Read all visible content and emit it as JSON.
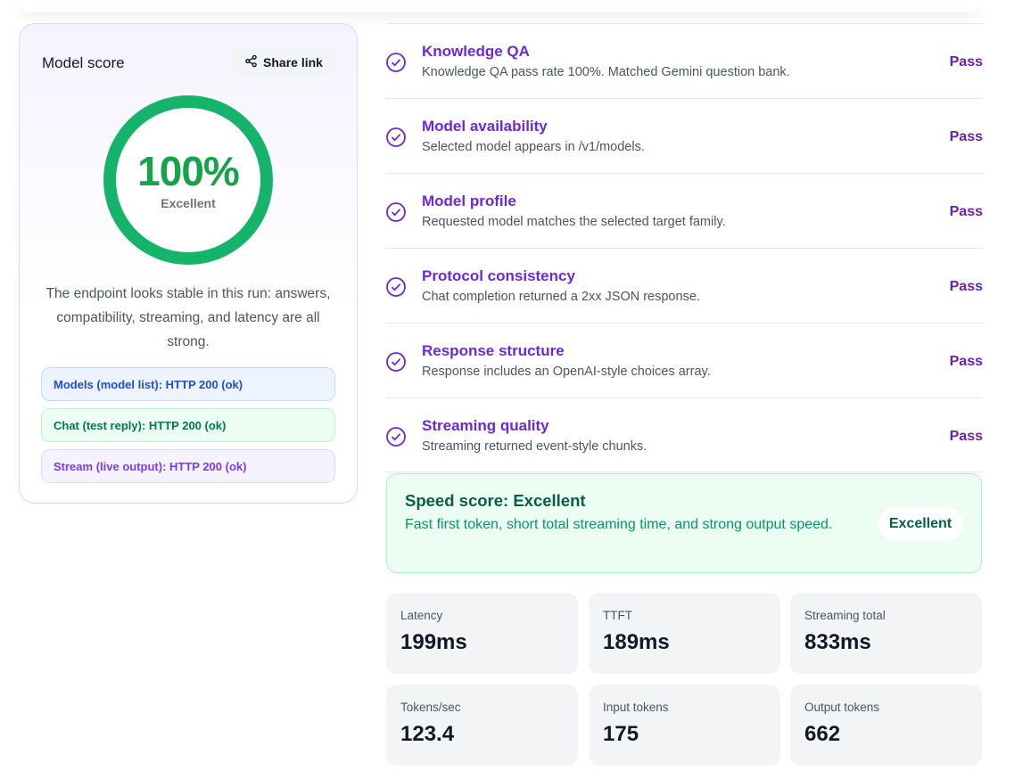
{
  "score_card": {
    "title": "Model score",
    "share_label": "Share link",
    "score": "100%",
    "grade": "Excellent",
    "ring_fill": 1.0,
    "summary": "The endpoint looks stable in this run: answers, compatibility, streaming, and latency are all strong.",
    "statuses": [
      {
        "text": "Models (model list): HTTP 200 (ok)",
        "tone": "blue"
      },
      {
        "text": "Chat (test reply): HTTP 200 (ok)",
        "tone": "green"
      },
      {
        "text": "Stream (live output): HTTP 200 (ok)",
        "tone": "purple"
      }
    ]
  },
  "checks": [
    {
      "title": "Knowledge QA",
      "desc": "Knowledge QA pass rate 100%. Matched Gemini question bank.",
      "status": "Pass",
      "icon": "check-circle-icon"
    },
    {
      "title": "Model availability",
      "desc": "Selected model appears in /v1/models.",
      "status": "Pass",
      "icon": "check-circle-icon"
    },
    {
      "title": "Model profile",
      "desc": "Requested model matches the selected target family.",
      "status": "Pass",
      "icon": "check-circle-icon"
    },
    {
      "title": "Protocol consistency",
      "desc": "Chat completion returned a 2xx JSON response.",
      "status": "Pass",
      "icon": "check-circle-icon"
    },
    {
      "title": "Response structure",
      "desc": "Response includes an OpenAI-style choices array.",
      "status": "Pass",
      "icon": "check-circle-icon"
    },
    {
      "title": "Streaming quality",
      "desc": "Streaming returned event-style chunks.",
      "status": "Pass",
      "icon": "check-circle-icon"
    }
  ],
  "speed": {
    "title": "Speed score: Excellent",
    "desc": "Fast first token, short total streaming time, and strong output speed.",
    "badge": "Excellent"
  },
  "metrics": [
    {
      "label": "Latency",
      "value": "199ms"
    },
    {
      "label": "TTFT",
      "value": "189ms"
    },
    {
      "label": "Streaming total",
      "value": "833ms"
    },
    {
      "label": "Tokens/sec",
      "value": "123.4"
    },
    {
      "label": "Input tokens",
      "value": "175"
    },
    {
      "label": "Output tokens",
      "value": "662"
    }
  ],
  "colors": {
    "accent_purple": "#6d28d9",
    "success_green": "#16b36a",
    "status_pass": "#6b21a8"
  }
}
